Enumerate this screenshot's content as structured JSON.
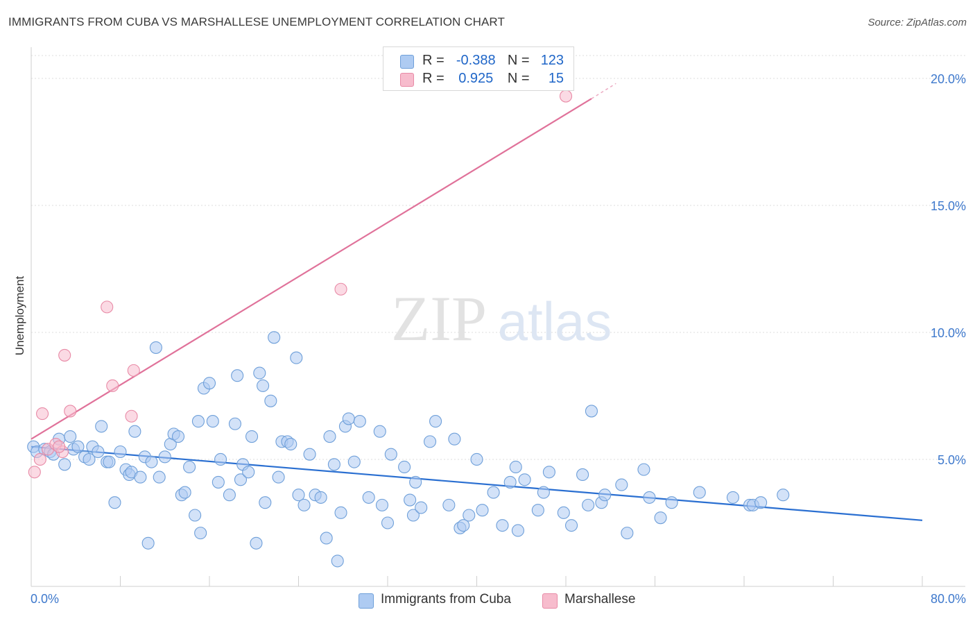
{
  "title": "IMMIGRANTS FROM CUBA VS MARSHALLESE UNEMPLOYMENT CORRELATION CHART",
  "source": "Source: ZipAtlas.com",
  "watermark": {
    "zip": "ZIP",
    "atlas": "atlas"
  },
  "legend": {
    "r_label": "R =",
    "n_label": "N =",
    "rows": [
      {
        "r": "-0.388",
        "n": "123",
        "color": "#aecbf2",
        "border": "#6e9fd9"
      },
      {
        "r": "0.925",
        "n": "15",
        "color": "#f7bccd",
        "border": "#e88aa6"
      }
    ]
  },
  "chart_data": {
    "type": "scatter",
    "ylabel": "Unemployment",
    "xlim": [
      0,
      80
    ],
    "ylim": [
      0,
      20
    ],
    "x_tick_labels": [
      "0.0%",
      "80.0%"
    ],
    "y_ticks": [
      {
        "value": 5,
        "label": "5.0%"
      },
      {
        "value": 10,
        "label": "10.0%"
      },
      {
        "value": 15,
        "label": "15.0%"
      },
      {
        "value": 20,
        "label": "20.0%"
      }
    ],
    "grid": true,
    "legend_position": "bottom-center",
    "series": [
      {
        "name": "Immigrants from Cuba",
        "color": "#aecbf2",
        "stroke": "#6e9fd9",
        "line_color": "#2a6fd1",
        "trend": {
          "x0": 0,
          "y0": 5.5,
          "x1": 80,
          "y1": 2.6
        },
        "points": [
          [
            0.2,
            5.5
          ],
          [
            0.5,
            5.3
          ],
          [
            1.2,
            5.4
          ],
          [
            1.7,
            5.3
          ],
          [
            2.0,
            5.2
          ],
          [
            2.5,
            5.8
          ],
          [
            3.0,
            4.8
          ],
          [
            3.5,
            5.9
          ],
          [
            3.8,
            5.4
          ],
          [
            4.2,
            5.5
          ],
          [
            4.8,
            5.1
          ],
          [
            5.2,
            5.0
          ],
          [
            5.5,
            5.5
          ],
          [
            6.0,
            5.3
          ],
          [
            6.3,
            6.3
          ],
          [
            6.8,
            4.9
          ],
          [
            7.0,
            4.9
          ],
          [
            7.5,
            3.3
          ],
          [
            8.0,
            5.3
          ],
          [
            8.5,
            4.6
          ],
          [
            8.8,
            4.4
          ],
          [
            9.0,
            4.5
          ],
          [
            9.3,
            6.1
          ],
          [
            9.8,
            4.3
          ],
          [
            10.2,
            5.1
          ],
          [
            10.5,
            1.7
          ],
          [
            10.8,
            4.9
          ],
          [
            11.2,
            9.4
          ],
          [
            11.5,
            4.3
          ],
          [
            12.0,
            5.1
          ],
          [
            12.5,
            5.6
          ],
          [
            12.8,
            6.0
          ],
          [
            13.2,
            5.9
          ],
          [
            13.5,
            3.6
          ],
          [
            13.8,
            3.7
          ],
          [
            14.2,
            4.7
          ],
          [
            14.7,
            2.8
          ],
          [
            15.0,
            6.5
          ],
          [
            15.2,
            2.1
          ],
          [
            15.5,
            7.8
          ],
          [
            16.0,
            8.0
          ],
          [
            16.3,
            6.5
          ],
          [
            16.8,
            4.1
          ],
          [
            17.0,
            5.0
          ],
          [
            17.8,
            3.6
          ],
          [
            18.3,
            6.4
          ],
          [
            18.5,
            8.3
          ],
          [
            18.8,
            4.2
          ],
          [
            19.0,
            4.8
          ],
          [
            19.5,
            4.5
          ],
          [
            19.8,
            5.9
          ],
          [
            20.2,
            1.7
          ],
          [
            20.5,
            8.4
          ],
          [
            20.8,
            7.9
          ],
          [
            21.0,
            3.3
          ],
          [
            21.5,
            7.3
          ],
          [
            21.8,
            9.8
          ],
          [
            22.2,
            4.3
          ],
          [
            22.5,
            5.7
          ],
          [
            23.0,
            5.7
          ],
          [
            23.3,
            5.6
          ],
          [
            23.8,
            9.0
          ],
          [
            24.0,
            3.6
          ],
          [
            24.5,
            3.2
          ],
          [
            25.0,
            5.2
          ],
          [
            25.5,
            3.6
          ],
          [
            26.0,
            3.5
          ],
          [
            26.5,
            1.9
          ],
          [
            26.8,
            5.9
          ],
          [
            27.2,
            4.8
          ],
          [
            27.5,
            1.0
          ],
          [
            27.8,
            2.9
          ],
          [
            28.2,
            6.3
          ],
          [
            28.5,
            6.6
          ],
          [
            29.0,
            4.9
          ],
          [
            29.5,
            6.5
          ],
          [
            30.3,
            3.5
          ],
          [
            31.3,
            6.1
          ],
          [
            31.5,
            3.2
          ],
          [
            32.0,
            2.5
          ],
          [
            32.3,
            5.2
          ],
          [
            33.5,
            4.7
          ],
          [
            34.0,
            3.4
          ],
          [
            34.3,
            2.8
          ],
          [
            34.5,
            4.1
          ],
          [
            35.0,
            3.1
          ],
          [
            35.8,
            5.7
          ],
          [
            36.3,
            6.5
          ],
          [
            37.5,
            3.2
          ],
          [
            38.0,
            5.8
          ],
          [
            38.5,
            2.3
          ],
          [
            38.8,
            2.4
          ],
          [
            39.3,
            2.8
          ],
          [
            40.0,
            5.0
          ],
          [
            40.5,
            3.0
          ],
          [
            41.5,
            3.7
          ],
          [
            42.3,
            2.4
          ],
          [
            43.0,
            4.1
          ],
          [
            43.5,
            4.7
          ],
          [
            43.7,
            2.2
          ],
          [
            44.3,
            4.2
          ],
          [
            45.5,
            3.0
          ],
          [
            46.0,
            3.7
          ],
          [
            46.5,
            4.5
          ],
          [
            47.8,
            2.9
          ],
          [
            48.5,
            2.4
          ],
          [
            49.5,
            4.4
          ],
          [
            50.3,
            6.9
          ],
          [
            51.2,
            3.3
          ],
          [
            51.5,
            3.6
          ],
          [
            53.0,
            4.0
          ],
          [
            53.5,
            2.1
          ],
          [
            55.0,
            4.6
          ],
          [
            55.5,
            3.5
          ],
          [
            56.5,
            2.7
          ],
          [
            57.5,
            3.3
          ],
          [
            60.0,
            3.7
          ],
          [
            63.0,
            3.5
          ],
          [
            64.5,
            3.2
          ],
          [
            64.8,
            3.2
          ],
          [
            65.5,
            3.3
          ],
          [
            67.5,
            3.6
          ],
          [
            50.0,
            3.2
          ]
        ]
      },
      {
        "name": "Marshallese",
        "color": "#f7bccd",
        "stroke": "#e88aa6",
        "line_color": "#e0729a",
        "trend": {
          "x0": 0,
          "y0": 5.8,
          "x1": 50.3,
          "y1": 19.2
        },
        "trend_dash_to": {
          "x": 52.5,
          "y": 19.8
        },
        "points": [
          [
            0.3,
            4.5
          ],
          [
            0.8,
            5.0
          ],
          [
            1.0,
            6.8
          ],
          [
            1.5,
            5.4
          ],
          [
            2.2,
            5.6
          ],
          [
            2.8,
            5.3
          ],
          [
            2.5,
            5.5
          ],
          [
            3.0,
            9.1
          ],
          [
            3.5,
            6.9
          ],
          [
            6.8,
            11.0
          ],
          [
            7.3,
            7.9
          ],
          [
            9.0,
            6.7
          ],
          [
            9.2,
            8.5
          ],
          [
            27.8,
            11.7
          ],
          [
            48.0,
            19.3
          ]
        ]
      }
    ]
  }
}
